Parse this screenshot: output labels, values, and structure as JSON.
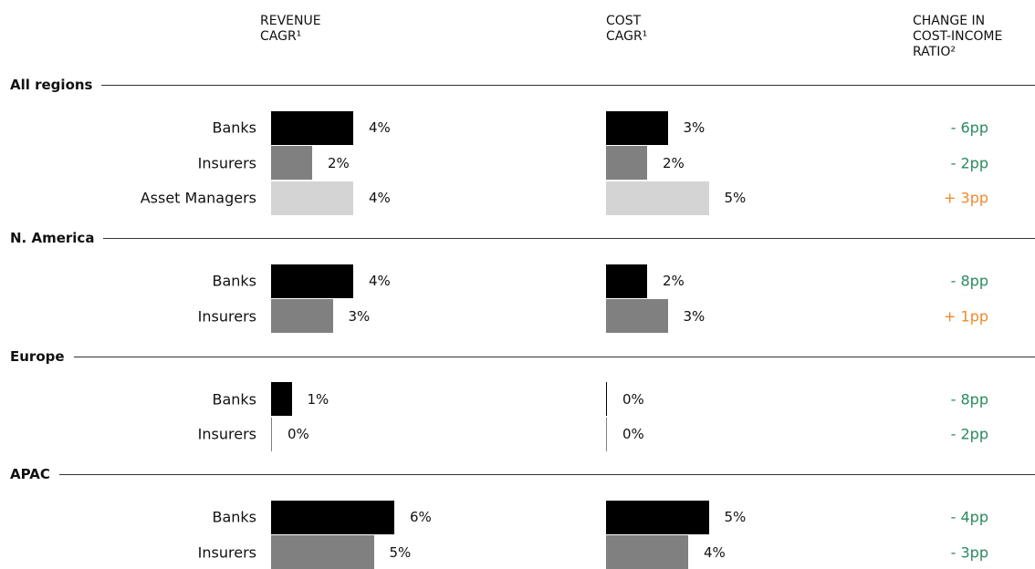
{
  "chart_data": {
    "type": "bar",
    "orientation": "horizontal",
    "columns": [
      "REVENUE\nCAGR¹",
      "COST\nCAGR¹",
      "CHANGE IN\nCOST-INCOME\nRATIO²"
    ],
    "xlim": [
      0,
      6
    ],
    "change_colors": {
      "negative": "#2b8a5e",
      "positive": "#ee8a2f"
    },
    "groups": [
      {
        "name": "All regions",
        "categories": [
          "Banks",
          "Insurers",
          "Asset Managers"
        ],
        "colors": [
          "#000000",
          "#808080",
          "#d4d4d4"
        ],
        "revenue": {
          "values": [
            4,
            2,
            4
          ],
          "value_labels": [
            "4%",
            "2%",
            "4%"
          ]
        },
        "cost": {
          "values": [
            3,
            2,
            5
          ],
          "value_labels": [
            "3%",
            "2%",
            "5%"
          ]
        },
        "change": {
          "values": [
            -6,
            -2,
            3
          ],
          "value_labels": [
            "- 6pp",
            "- 2pp",
            "+ 3pp"
          ]
        }
      },
      {
        "name": "N. America",
        "categories": [
          "Banks",
          "Insurers"
        ],
        "colors": [
          "#000000",
          "#808080"
        ],
        "revenue": {
          "values": [
            4,
            3
          ],
          "value_labels": [
            "4%",
            "3%"
          ]
        },
        "cost": {
          "values": [
            2,
            3
          ],
          "value_labels": [
            "2%",
            "3%"
          ]
        },
        "change": {
          "values": [
            -8,
            1
          ],
          "value_labels": [
            "- 8pp",
            "+ 1pp"
          ]
        }
      },
      {
        "name": "Europe",
        "categories": [
          "Banks",
          "Insurers"
        ],
        "colors": [
          "#000000",
          "#808080"
        ],
        "revenue": {
          "values": [
            1,
            0
          ],
          "value_labels": [
            "1%",
            "0%"
          ]
        },
        "cost": {
          "values": [
            0,
            0
          ],
          "value_labels": [
            "0%",
            "0%"
          ]
        },
        "change": {
          "values": [
            -8,
            -2
          ],
          "value_labels": [
            "- 8pp",
            "- 2pp"
          ]
        }
      },
      {
        "name": "APAC",
        "categories": [
          "Banks",
          "Insurers"
        ],
        "colors": [
          "#000000",
          "#808080"
        ],
        "revenue": {
          "values": [
            6,
            5
          ],
          "value_labels": [
            "6%",
            "5%"
          ]
        },
        "cost": {
          "values": [
            5,
            4
          ],
          "value_labels": [
            "5%",
            "4%"
          ]
        },
        "change": {
          "values": [
            -4,
            -3
          ],
          "value_labels": [
            "- 4pp",
            "- 3pp"
          ]
        }
      }
    ]
  }
}
